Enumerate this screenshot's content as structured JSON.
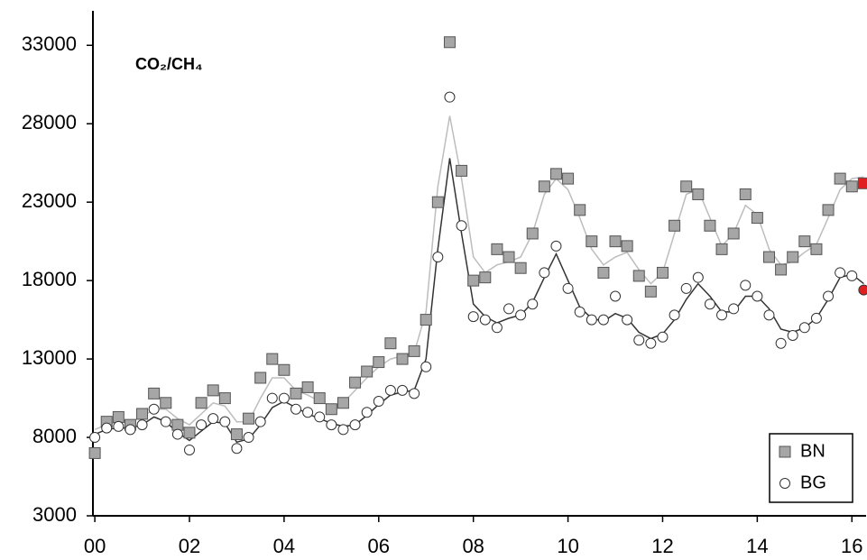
{
  "chart_data": {
    "type": "scatter",
    "title": "CO₂/CH₄",
    "x": [
      0,
      0.25,
      0.5,
      0.75,
      1,
      1.25,
      1.5,
      1.75,
      2,
      2.25,
      2.5,
      2.75,
      3,
      3.25,
      3.5,
      3.75,
      4,
      4.25,
      4.5,
      4.75,
      5,
      5.25,
      5.5,
      5.75,
      6,
      6.25,
      6.5,
      6.75,
      7,
      7.25,
      7.5,
      7.75,
      8,
      8.25,
      8.5,
      8.75,
      9,
      9.25,
      9.5,
      9.75,
      10,
      10.25,
      10.5,
      10.75,
      11,
      11.25,
      11.5,
      11.75,
      12,
      12.25,
      12.5,
      12.75,
      13,
      13.25,
      13.5,
      13.75,
      14,
      14.25,
      14.5,
      14.75,
      15,
      15.25,
      15.5,
      15.75,
      16,
      16.25
    ],
    "series": [
      {
        "name": "BN",
        "marker": "square",
        "color": "#a6a6a6",
        "line_color": "#bdbdbd",
        "values": [
          7000,
          9000,
          9300,
          8800,
          9500,
          10800,
          10200,
          8800,
          8300,
          10200,
          11000,
          10500,
          8200,
          9200,
          11800,
          13000,
          12300,
          10800,
          11200,
          10500,
          9800,
          10200,
          11500,
          12200,
          12800,
          14000,
          13000,
          13500,
          15500,
          23000,
          33200,
          25000,
          18000,
          18200,
          20000,
          19500,
          18800,
          21000,
          24000,
          24800,
          24500,
          22500,
          20500,
          18500,
          20500,
          20200,
          18300,
          17300,
          18500,
          21500,
          24000,
          23500,
          21500,
          20000,
          21000,
          23500,
          22000,
          19500,
          18700,
          19500,
          20500,
          20000,
          22500,
          24500,
          24000,
          24200
        ],
        "trend": [
          8500,
          8800,
          9000,
          9000,
          9300,
          9800,
          9800,
          9200,
          8800,
          9500,
          10200,
          10000,
          9000,
          9000,
          10500,
          11800,
          11800,
          11000,
          10700,
          10300,
          10000,
          10200,
          11000,
          11800,
          12500,
          13000,
          13200,
          13400,
          16000,
          24000,
          28500,
          24500,
          19500,
          18500,
          19000,
          19200,
          19500,
          21000,
          23500,
          24500,
          23800,
          22000,
          20000,
          19000,
          19500,
          19800,
          18700,
          17800,
          18500,
          21000,
          23500,
          23800,
          22000,
          20200,
          21000,
          22800,
          22200,
          20000,
          19000,
          19200,
          19800,
          20300,
          22000,
          23800,
          24500,
          24600
        ]
      },
      {
        "name": "BG",
        "marker": "circle",
        "color": "#ffffff",
        "line_color": "#333333",
        "values": [
          8000,
          8600,
          8700,
          8500,
          8800,
          9800,
          9000,
          8200,
          7200,
          8800,
          9200,
          9000,
          7300,
          8000,
          9000,
          10500,
          10500,
          9800,
          9600,
          9300,
          8800,
          8500,
          8800,
          9600,
          10300,
          11000,
          11000,
          10800,
          12500,
          19500,
          29700,
          21500,
          15700,
          15500,
          15000,
          16200,
          15800,
          16500,
          18500,
          20200,
          17500,
          16000,
          15500,
          15500,
          17000,
          15500,
          14200,
          14000,
          14400,
          15800,
          17500,
          18200,
          16500,
          15800,
          16200,
          17700,
          17000,
          15800,
          14000,
          14500,
          15000,
          15600,
          17000,
          18500,
          18300,
          17400
        ],
        "trend": [
          8200,
          8500,
          8600,
          8600,
          8800,
          9300,
          9000,
          8300,
          7800,
          8400,
          9000,
          8900,
          7700,
          7900,
          8800,
          9900,
          10300,
          9900,
          9500,
          9200,
          8900,
          8700,
          8800,
          9400,
          10100,
          10700,
          10900,
          11000,
          13000,
          20000,
          25800,
          21000,
          16500,
          15700,
          15300,
          15600,
          15800,
          16600,
          18200,
          19700,
          18000,
          16300,
          15600,
          15400,
          15900,
          15600,
          14700,
          14300,
          14600,
          15500,
          16800,
          17800,
          17000,
          16000,
          16000,
          17000,
          17000,
          16200,
          14900,
          14700,
          15000,
          15600,
          16800,
          18200,
          18400,
          17800
        ]
      }
    ],
    "highlight_last_color": "#e02020",
    "xlim": [
      -0.04,
      16.3
    ],
    "xticks": [
      {
        "value": 0,
        "label": "00"
      },
      {
        "value": 2,
        "label": "02"
      },
      {
        "value": 4,
        "label": "04"
      },
      {
        "value": 6,
        "label": "06"
      },
      {
        "value": 8,
        "label": "08"
      },
      {
        "value": 10,
        "label": "10"
      },
      {
        "value": 12,
        "label": "12"
      },
      {
        "value": 14,
        "label": "14"
      },
      {
        "value": 16,
        "label": "16"
      }
    ],
    "ylim": [
      3000,
      35200
    ],
    "yticks": [
      3000,
      8000,
      13000,
      18000,
      23000,
      28000,
      33000
    ],
    "grid": false,
    "legend": "bottom-right"
  }
}
